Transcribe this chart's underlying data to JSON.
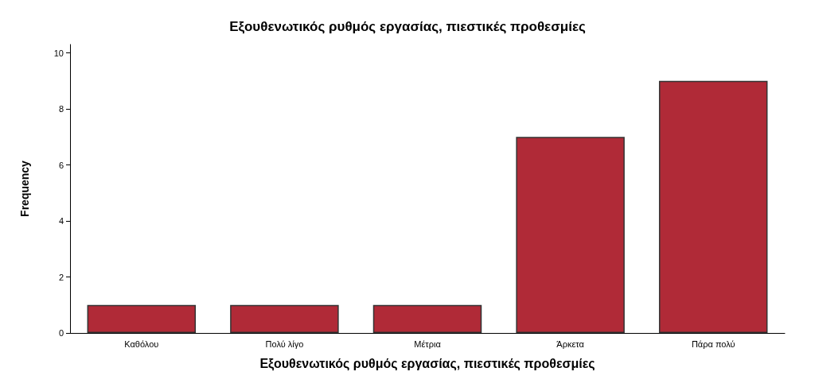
{
  "chart_data": {
    "type": "bar",
    "title": "Εξουθενωτικός ρυθμός εργασίας, πιεστικές προθεσμίες",
    "xlabel": "Εξουθενωτικός ρυθμός εργασίας, πιεστικές προθεσμίες",
    "ylabel": "Frequency",
    "categories": [
      "Καθόλου",
      "Πολύ λίγο",
      "Μέτρια",
      "Άρκετα",
      "Πάρα πολύ"
    ],
    "values": [
      1,
      1,
      1,
      7,
      9
    ],
    "color": "#b02a37",
    "ylim": [
      0,
      10.3
    ],
    "yticks": [
      0,
      2,
      4,
      6,
      8,
      10
    ],
    "grid": false
  }
}
